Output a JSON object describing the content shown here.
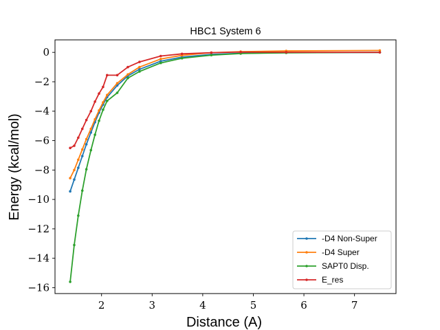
{
  "chart_data": {
    "type": "line",
    "title": "HBC1 System 6",
    "xlabel": "Distance (A)",
    "ylabel": "Energy (kcal/mol)",
    "xlim": [
      1.08,
      7.82
    ],
    "ylim": [
      -16.4,
      0.85
    ],
    "xticks": [
      2,
      3,
      4,
      5,
      6,
      7
    ],
    "yticks": [
      0,
      -2,
      -4,
      -6,
      -8,
      -10,
      -12,
      -14,
      -16
    ],
    "xtick_labels": [
      "2",
      "3",
      "4",
      "5",
      "6",
      "7"
    ],
    "ytick_labels": [
      "0",
      "−2",
      "−4",
      "−6",
      "−8",
      "−10",
      "−12",
      "−14",
      "−16"
    ],
    "grid": false,
    "legend_position": "lower-right",
    "x": [
      1.38,
      1.46,
      1.54,
      1.62,
      1.7,
      1.79,
      1.87,
      1.95,
      2.03,
      2.11,
      2.31,
      2.52,
      2.75,
      3.17,
      3.59,
      4.17,
      4.75,
      5.65,
      7.5
    ],
    "series": [
      {
        "name": "-D4 Non-Super",
        "color": "#1f77b4",
        "values": [
          -9.45,
          -8.65,
          -7.85,
          -7.05,
          -6.25,
          -5.45,
          -4.75,
          -4.1,
          -3.55,
          -3.05,
          -2.25,
          -1.6,
          -1.15,
          -0.6,
          -0.32,
          -0.14,
          -0.06,
          -0.02,
          0.0
        ]
      },
      {
        "name": "-D4 Super",
        "color": "#ff7f0e",
        "values": [
          -8.55,
          -8.0,
          -7.3,
          -6.6,
          -5.9,
          -5.2,
          -4.55,
          -3.95,
          -3.4,
          -2.9,
          -2.1,
          -1.5,
          -1.0,
          -0.45,
          -0.2,
          -0.02,
          0.05,
          0.1,
          0.13
        ]
      },
      {
        "name": "SAPT0 Disp.",
        "color": "#2ca02c",
        "values": [
          -15.6,
          -13.1,
          -11.1,
          -9.4,
          -7.95,
          -6.65,
          -5.6,
          -4.65,
          -3.9,
          -3.3,
          -2.75,
          -1.75,
          -1.3,
          -0.72,
          -0.4,
          -0.19,
          -0.08,
          -0.03,
          0.0
        ]
      },
      {
        "name": "E_res",
        "color": "#d62728",
        "values": [
          -6.5,
          -6.35,
          -5.8,
          -5.2,
          -4.6,
          -4.0,
          -3.35,
          -2.8,
          -2.35,
          -1.55,
          -1.55,
          -1.0,
          -0.65,
          -0.25,
          -0.1,
          -0.02,
          0.02,
          0.01,
          0.0
        ]
      }
    ]
  }
}
